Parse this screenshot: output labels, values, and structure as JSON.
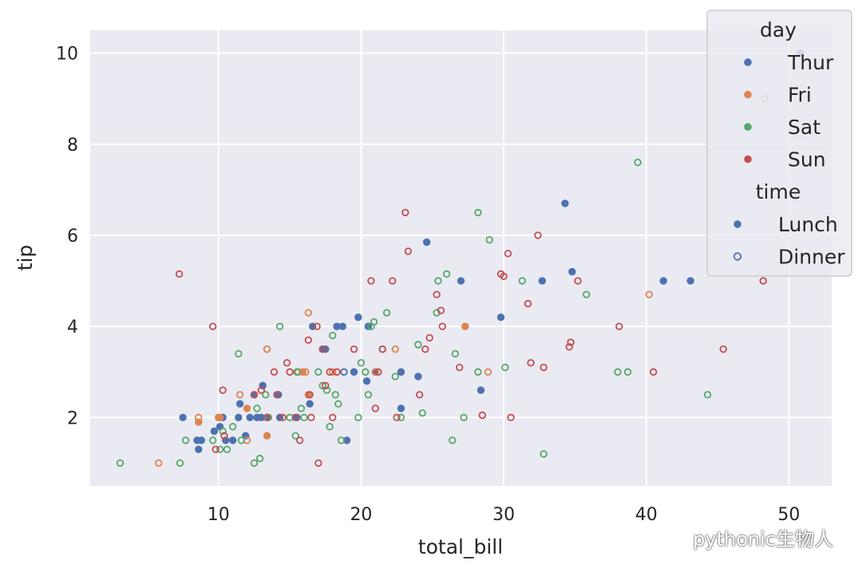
{
  "chart_data": {
    "type": "scatter",
    "xlabel": "total_bill",
    "ylabel": "tip",
    "xlim": [
      1,
      53
    ],
    "ylim": [
      0.5,
      10.5
    ],
    "xticks": [
      10,
      20,
      30,
      40,
      50
    ],
    "yticks": [
      2,
      4,
      6,
      8,
      10
    ],
    "grid": true,
    "legend_placement": "upper-right",
    "legend": {
      "hue_title": "day",
      "hue_entries": [
        {
          "name": "Thur",
          "color": "#4c72b0"
        },
        {
          "name": "Fri",
          "color": "#dd8452"
        },
        {
          "name": "Sat",
          "color": "#55a868"
        },
        {
          "name": "Sun",
          "color": "#c44e52"
        }
      ],
      "style_title": "time",
      "style_entries": [
        {
          "name": "Lunch",
          "marker": "filled"
        },
        {
          "name": "Dinner",
          "marker": "hollow"
        }
      ]
    },
    "series": [
      {
        "day": "Thur",
        "time": "Lunch",
        "color": "#4c72b0",
        "marker": "filled",
        "x": [
          7.5,
          8.5,
          8.6,
          8.8,
          9.7,
          10.1,
          10.3,
          10.5,
          11.0,
          11.4,
          11.5,
          11.9,
          12.2,
          12.5,
          12.7,
          13.0,
          13.1,
          13.4,
          14.2,
          14.3,
          15.5,
          16.4,
          16.6,
          17.3,
          17.5,
          18.3,
          18.7,
          19.0,
          19.5,
          19.8,
          20.4,
          20.5,
          21.0,
          22.8,
          22.8,
          24.0,
          24.6,
          27.0,
          28.4,
          29.8,
          32.7,
          34.3,
          34.8,
          41.2,
          43.1,
          50.8
        ],
        "y": [
          2.0,
          1.5,
          1.3,
          1.5,
          1.7,
          1.8,
          2.0,
          1.5,
          1.5,
          2.0,
          2.3,
          1.6,
          2.0,
          2.5,
          2.0,
          2.0,
          2.7,
          2.0,
          2.5,
          2.0,
          2.0,
          2.3,
          4.0,
          3.5,
          3.5,
          4.0,
          4.0,
          1.5,
          3.0,
          4.2,
          2.8,
          4.0,
          3.0,
          3.0,
          2.2,
          2.9,
          5.85,
          5.0,
          2.6,
          4.2,
          5.0,
          6.7,
          5.2,
          5.0,
          5.0,
          10.0
        ]
      },
      {
        "day": "Thur",
        "time": "Dinner",
        "color": "#4c72b0",
        "marker": "hollow",
        "x": [
          18.8
        ],
        "y": [
          3.0
        ]
      },
      {
        "day": "Fri",
        "time": "Lunch",
        "color": "#dd8452",
        "marker": "filled",
        "x": [
          8.6,
          10.1,
          12.0,
          13.4,
          15.9,
          16.3,
          27.3
        ],
        "y": [
          1.9,
          2.0,
          2.2,
          1.6,
          3.0,
          2.5,
          4.0
        ]
      },
      {
        "day": "Fri",
        "time": "Dinner",
        "color": "#dd8452",
        "marker": "hollow",
        "x": [
          5.8,
          8.6,
          10.0,
          11.5,
          12.0,
          12.5,
          13.4,
          13.4,
          15.6,
          16.1,
          16.3,
          18.0,
          21.0,
          22.4,
          28.9,
          40.2
        ],
        "y": [
          1.0,
          2.0,
          2.0,
          2.5,
          1.5,
          2.5,
          3.5,
          3.5,
          3.0,
          3.0,
          4.3,
          3.0,
          3.0,
          3.5,
          3.0,
          4.7
        ]
      },
      {
        "day": "Sat",
        "time": "Dinner",
        "color": "#55a868",
        "marker": "hollow",
        "x": [
          3.1,
          7.3,
          7.7,
          9.6,
          10.1,
          10.3,
          10.6,
          11.0,
          11.4,
          11.6,
          12.5,
          12.7,
          12.9,
          13.3,
          13.5,
          14.3,
          15.0,
          15.4,
          15.5,
          15.8,
          16.0,
          17.0,
          17.3,
          17.6,
          17.8,
          18.0,
          18.2,
          18.4,
          18.6,
          19.8,
          20.0,
          20.3,
          20.5,
          20.7,
          20.9,
          21.5,
          21.8,
          22.4,
          22.8,
          24.0,
          24.3,
          25.3,
          25.4,
          26.0,
          26.4,
          26.6,
          27.2,
          28.2,
          28.2,
          29.0,
          30.1,
          31.3,
          32.8,
          35.8,
          38.0,
          38.7,
          39.4,
          44.3,
          48.3
        ],
        "y": [
          1.0,
          1.0,
          1.5,
          1.5,
          1.3,
          1.7,
          1.3,
          1.8,
          3.4,
          1.5,
          1.0,
          2.2,
          1.1,
          2.5,
          2.0,
          4.0,
          2.0,
          1.6,
          3.0,
          2.2,
          2.0,
          3.0,
          2.7,
          2.6,
          1.8,
          3.8,
          2.5,
          2.3,
          1.5,
          2.0,
          3.2,
          3.0,
          2.5,
          4.0,
          4.1,
          3.5,
          4.3,
          2.9,
          2.0,
          3.6,
          2.1,
          4.3,
          5.0,
          5.15,
          1.5,
          3.4,
          2.0,
          6.5,
          3.0,
          5.9,
          3.1,
          5.0,
          1.2,
          4.7,
          3.0,
          3.0,
          7.6,
          2.5,
          9.0
        ]
      },
      {
        "day": "Sun",
        "time": "Dinner",
        "color": "#c44e52",
        "marker": "hollow",
        "x": [
          7.25,
          9.6,
          9.8,
          10.3,
          10.4,
          12.5,
          13.0,
          13.4,
          13.9,
          14.1,
          14.5,
          14.8,
          15.0,
          15.4,
          15.7,
          16.3,
          16.4,
          16.5,
          16.9,
          17.0,
          17.3,
          17.5,
          17.8,
          18.0,
          18.3,
          19.5,
          20.7,
          21.0,
          21.2,
          21.5,
          22.2,
          22.5,
          23.1,
          23.3,
          24.1,
          24.5,
          24.8,
          25.3,
          25.6,
          25.7,
          26.9,
          28.5,
          29.8,
          30.0,
          30.3,
          30.5,
          31.7,
          31.9,
          32.4,
          32.8,
          34.6,
          34.7,
          35.2,
          38.1,
          40.5,
          45.4,
          48.2
        ],
        "y": [
          5.15,
          4.0,
          1.3,
          2.6,
          1.6,
          2.5,
          2.6,
          2.0,
          3.0,
          2.5,
          2.0,
          3.2,
          3.0,
          2.0,
          1.5,
          3.7,
          2.5,
          2.0,
          4.0,
          1.0,
          3.5,
          2.7,
          3.0,
          2.0,
          3.0,
          3.5,
          5.0,
          2.2,
          3.0,
          3.5,
          5.0,
          2.0,
          6.5,
          5.65,
          2.5,
          3.5,
          3.75,
          4.7,
          4.35,
          4.0,
          3.1,
          2.05,
          5.15,
          5.1,
          5.6,
          2.0,
          4.5,
          3.2,
          6.0,
          3.1,
          3.55,
          3.65,
          5.0,
          4.0,
          3.0,
          3.5,
          5.0
        ]
      }
    ]
  }
}
